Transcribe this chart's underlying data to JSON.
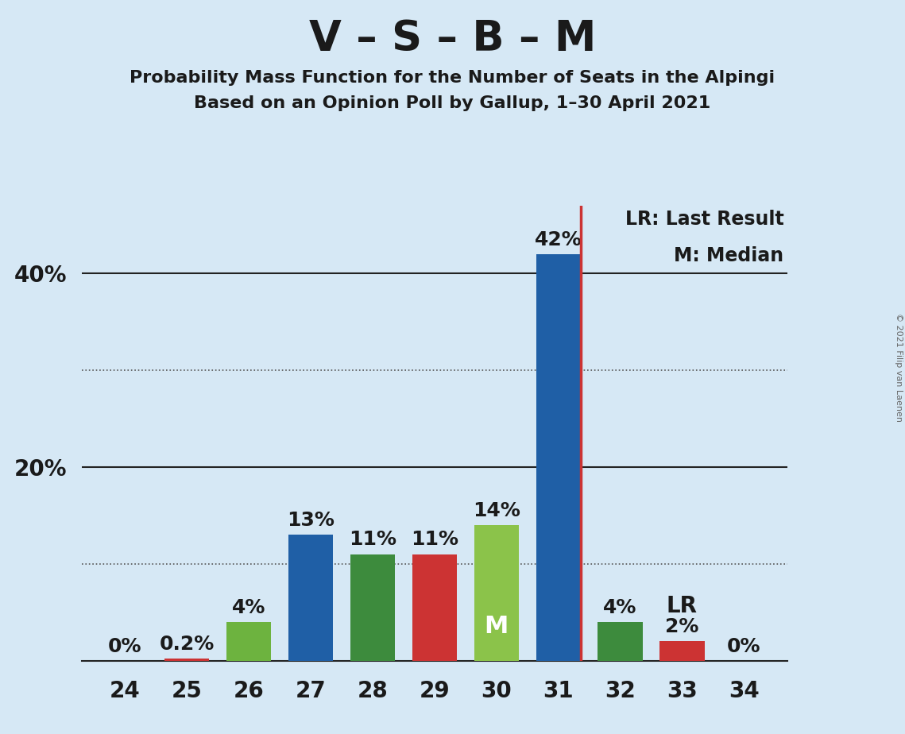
{
  "title": "V – S – B – M",
  "subtitle1": "Probability Mass Function for the Number of Seats in the Alpingi",
  "subtitle2": "Based on an Opinion Poll by Gallup, 1–30 April 2021",
  "copyright": "© 2021 Filip van Laenen",
  "categories": [
    24,
    25,
    26,
    27,
    28,
    29,
    30,
    31,
    32,
    33,
    34
  ],
  "values": [
    0,
    0.2,
    4,
    13,
    11,
    11,
    14,
    42,
    4,
    2,
    0
  ],
  "bar_colors": [
    "#cc3333",
    "#cc3333",
    "#6db33f",
    "#1f5fa6",
    "#3d8b3d",
    "#cc3333",
    "#8bc34a",
    "#1f5fa6",
    "#3d8b3d",
    "#cc3333",
    "#cc3333"
  ],
  "bar_labels": [
    "0%",
    "0.2%",
    "4%",
    "13%",
    "11%",
    "11%",
    "14%",
    "42%",
    "4%",
    "2%",
    "0%"
  ],
  "median_bar_idx": 6,
  "median_label": "M",
  "median_label_color": "#ffffff",
  "lr_line_x": 31,
  "lr_line_color": "#cc3333",
  "lr_label_bar_idx": 9,
  "lr_label": "LR",
  "legend_text1": "LR: Last Result",
  "legend_text2": "M: Median",
  "ytick_positions": [
    20,
    40
  ],
  "ytick_labels": [
    "20%",
    "40%"
  ],
  "ylim": [
    0,
    47
  ],
  "solid_lines": [
    20,
    40
  ],
  "dotted_lines": [
    10,
    30
  ],
  "background_color": "#d6e8f5",
  "bar_width": 0.72,
  "xlim_left": 23.3,
  "xlim_right": 34.7
}
